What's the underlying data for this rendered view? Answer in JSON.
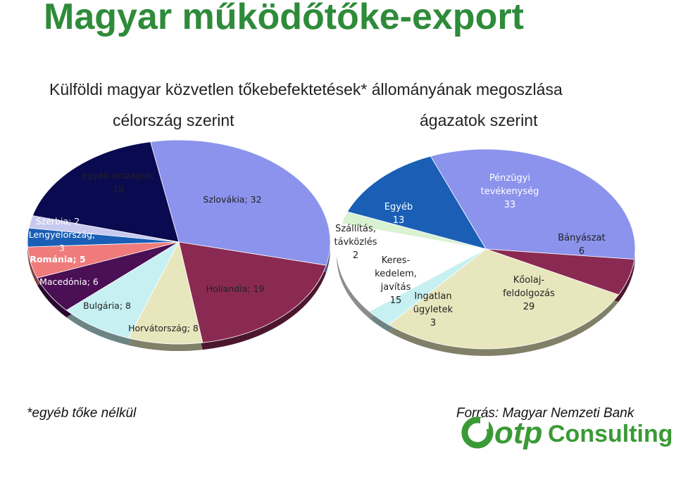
{
  "header": {
    "title": "Magyar működőtőke-export",
    "subtitle": "Külföldi magyar közvetlen tőkebefektetések* állományának megoszlása"
  },
  "footer": {
    "footnote": "*egyéb tőke nélkül",
    "source": "Forrás: Magyar Nemzeti Bank"
  },
  "logo": {
    "brand": "otp",
    "word": "Consulting",
    "green": "#3a9a35",
    "blue": "#1b3f8f"
  },
  "chart_data": [
    {
      "type": "pie",
      "title": "célország szerint",
      "slices": [
        {
          "label": "Szlovákia",
          "value": 32,
          "lines": [
            "Szlovákia; 32"
          ],
          "color": "#8b93ec"
        },
        {
          "label": "Hollandia",
          "value": 19,
          "lines": [
            "Hollandia; 19"
          ],
          "color": "#8a2a52"
        },
        {
          "label": "Horvátország",
          "value": 8,
          "lines": [
            "Horvátország; 8"
          ],
          "color": "#e8e6bd"
        },
        {
          "label": "Bulgária",
          "value": 8,
          "lines": [
            "Bulgária; 8"
          ],
          "color": "#c6f0f2"
        },
        {
          "label": "Macedónia",
          "value": 6,
          "lines": [
            "Macedónia; 6"
          ],
          "color": "#4a0f55"
        },
        {
          "label": "Románia",
          "value": 5,
          "lines": [
            "Románia; 5"
          ],
          "color": "#ef7b7b",
          "bold": true
        },
        {
          "label": "Lengyelország",
          "value": 3,
          "lines": [
            "Lengyelország;",
            "3"
          ],
          "color": "#1a5fb5"
        },
        {
          "label": "Szerbia",
          "value": 2,
          "lines": [
            "Szerbia; 2"
          ],
          "color": "#c8c9ee"
        },
        {
          "label": "egyéb országok",
          "value": 18,
          "lines": [
            "egyéb országok;",
            "18"
          ],
          "color": "#0a0a50"
        }
      ]
    },
    {
      "type": "pie",
      "title": "ágazatok szerint",
      "slices": [
        {
          "label": "Pénzügyi tevékenység",
          "value": 33,
          "lines": [
            "Pénzügyi",
            "tevékenység",
            "33"
          ],
          "color": "#8b93ec"
        },
        {
          "label": "Bányászat",
          "value": 6,
          "lines": [
            "Bányászat",
            "6"
          ],
          "color": "#8a2a52"
        },
        {
          "label": "Kőolaj-feldolgozás",
          "value": 29,
          "lines": [
            "Kőolaj-",
            "feldolgozás",
            "29"
          ],
          "color": "#e8e6bd"
        },
        {
          "label": "Ingatlan ügyletek",
          "value": 3,
          "lines": [
            "Ingatlan",
            "ügyletek",
            "3"
          ],
          "color": "#c6f0f2"
        },
        {
          "label": "Kereskedelem, javítás",
          "value": 15,
          "lines": [
            "Keres-",
            "kedelem,",
            "javítás",
            "15"
          ],
          "color": "#ffffff"
        },
        {
          "label": "Szállítás, távközlés",
          "value": 2,
          "lines": [
            "Szállítás,",
            "távközlés",
            "2"
          ],
          "color": "#d8f2d2"
        },
        {
          "label": "Egyéb",
          "value": 13,
          "lines": [
            "Egyéb",
            "13"
          ],
          "color": "#1a5fb5"
        }
      ]
    }
  ]
}
